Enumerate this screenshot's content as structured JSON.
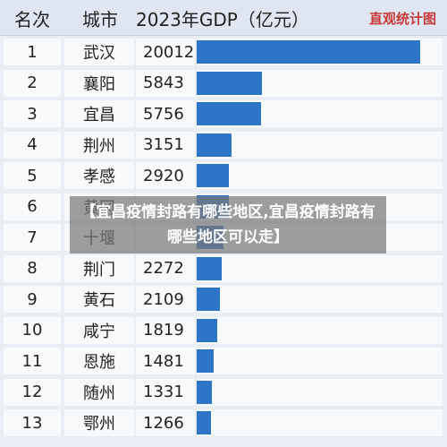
{
  "table": {
    "headers": {
      "rank": "名次",
      "city": "城市",
      "gdp": "2023年GDP（亿元）"
    },
    "brand": "直观统计图"
  },
  "chart_data": {
    "type": "bar",
    "title": "2023年GDP（亿元）",
    "categories": [
      "武汉",
      "襄阳",
      "宜昌",
      "荆州",
      "孝感",
      "黄冈",
      "十堰",
      "荆门",
      "黄石",
      "咸宁",
      "恩施",
      "随州",
      "鄂州"
    ],
    "ranks": [
      "1",
      "2",
      "3",
      "4",
      "5",
      "6",
      "7",
      "8",
      "9",
      "10",
      "11",
      "12",
      "13"
    ],
    "values": [
      20012,
      5843,
      5756,
      3151,
      2920,
      2861,
      2363,
      2272,
      2109,
      1819,
      1481,
      1331,
      1266
    ],
    "value_labels": [
      "20012",
      "5843",
      "5756",
      "3151",
      "2920",
      "",
      "",
      "2272",
      "2109",
      "1819",
      "1481",
      "1331",
      "1266"
    ],
    "bar_color": "#2f75c7",
    "xlim": [
      0,
      20012
    ]
  },
  "overlay": {
    "text": "【宜昌疫情封路有哪些地区,宜昌疫情封路有哪些地区可以走】"
  }
}
